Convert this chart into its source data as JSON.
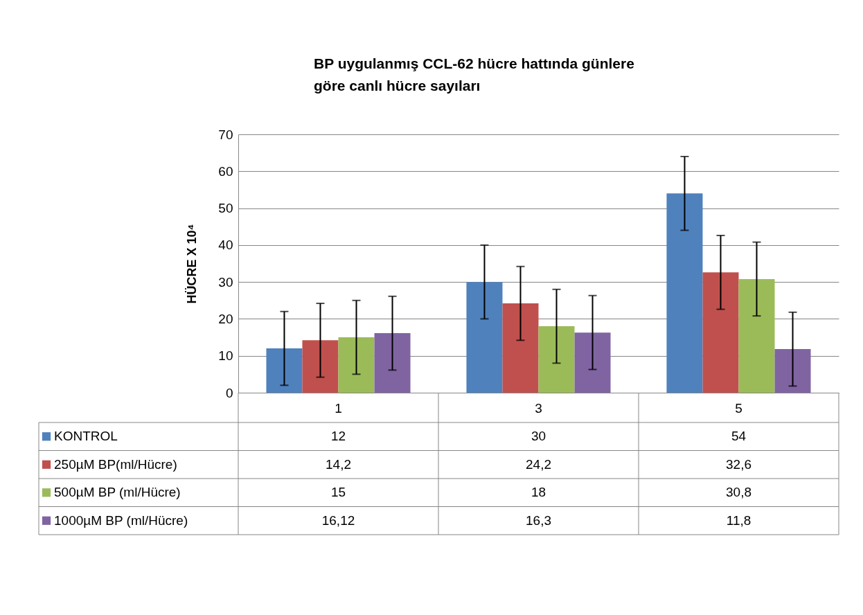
{
  "chart_data": {
    "type": "bar",
    "title": "BP uygulanmış CCL-62 hücre hattında günlere göre canlı hücre sayıları",
    "ylabel": "HÜCRE X 10⁴",
    "categories": [
      "1",
      "3",
      "5"
    ],
    "ylim": [
      0,
      70
    ],
    "yticks": [
      0,
      10,
      20,
      30,
      40,
      50,
      60,
      70
    ],
    "grid": "y",
    "legend": "bottom",
    "series": [
      {
        "name": "KONTROL",
        "color": "#4f81bd",
        "values": [
          12,
          30,
          54
        ],
        "errors": [
          10,
          10,
          10
        ],
        "value_labels": [
          "12",
          "30",
          "54"
        ]
      },
      {
        "name": "250µM BP(ml/Hücre)",
        "color": "#c0504d",
        "values": [
          14.2,
          24.2,
          32.6
        ],
        "errors": [
          10,
          10,
          10
        ],
        "value_labels": [
          "14,2",
          "24,2",
          "32,6"
        ]
      },
      {
        "name": "500µM BP (ml/Hücre)",
        "color": "#9bbb59",
        "values": [
          15,
          18,
          30.8
        ],
        "errors": [
          10,
          10,
          10
        ],
        "value_labels": [
          "15",
          "18",
          "30,8"
        ]
      },
      {
        "name": "1000µM BP (ml/Hücre)",
        "color": "#8064a2",
        "values": [
          16.12,
          16.3,
          11.8
        ],
        "errors": [
          10,
          10,
          10
        ],
        "value_labels": [
          "16,12",
          "16,3",
          "11,8"
        ]
      }
    ]
  }
}
